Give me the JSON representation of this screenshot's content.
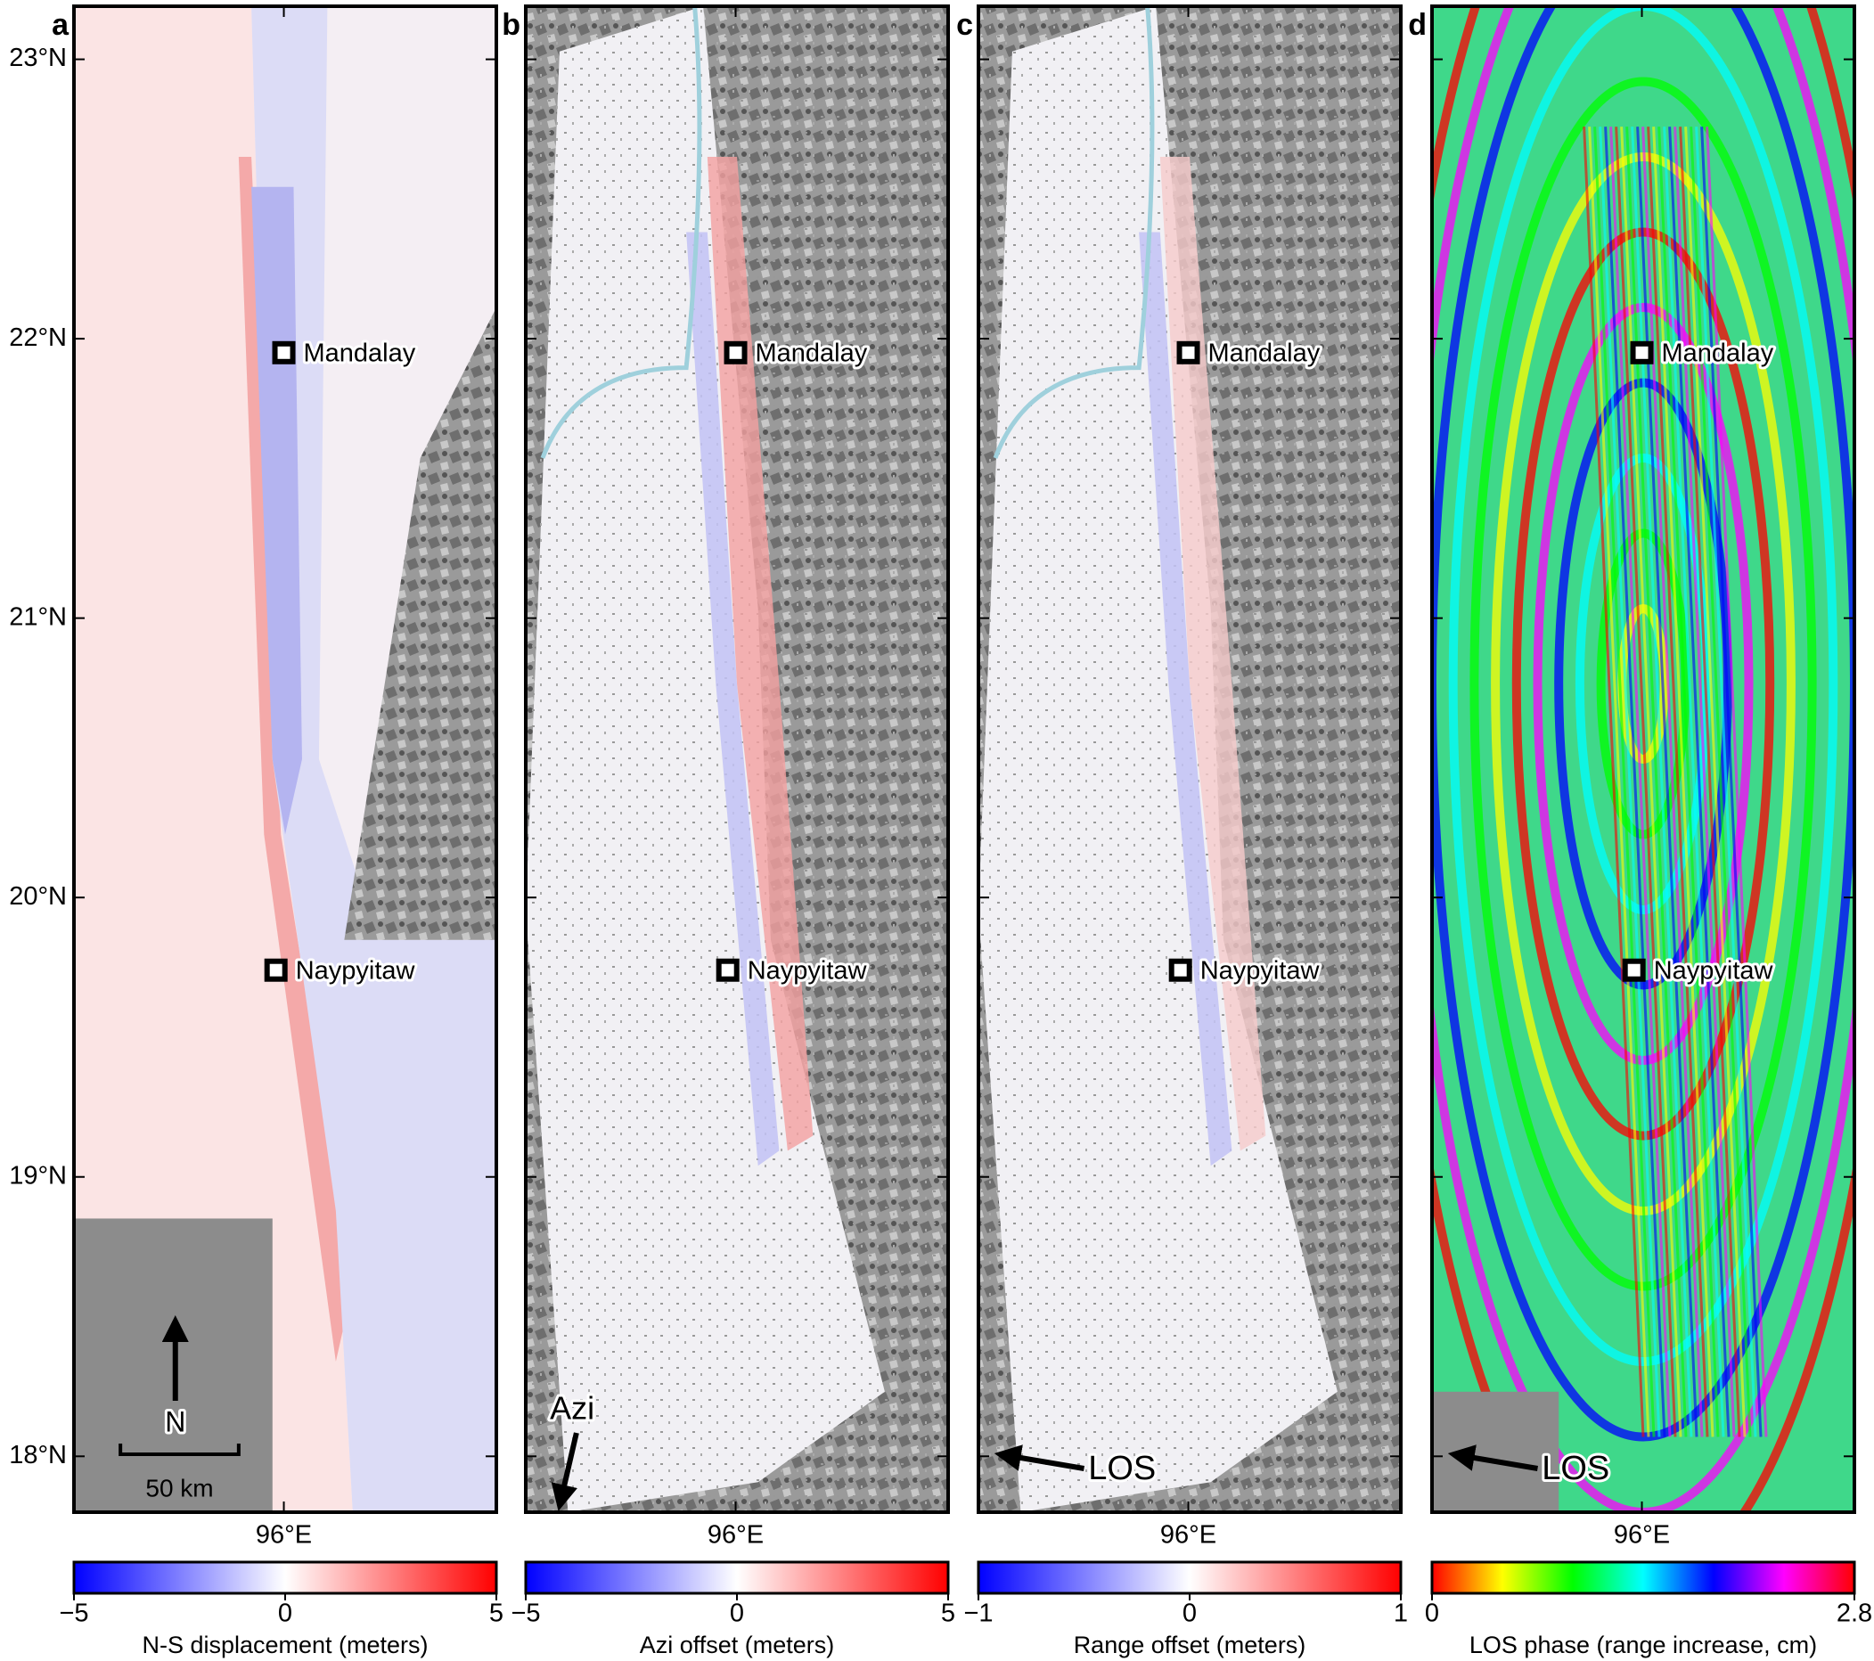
{
  "lat_ticks": [
    {
      "value": 23,
      "label": "23°N"
    },
    {
      "value": 22,
      "label": "22°N"
    },
    {
      "value": 21,
      "label": "21°N"
    },
    {
      "value": 20,
      "label": "20°N"
    },
    {
      "value": 19,
      "label": "19°N"
    },
    {
      "value": 18,
      "label": "18°N"
    }
  ],
  "lon_ticks": [
    {
      "value": 96,
      "label": "96°E"
    }
  ],
  "lat_range": [
    17.8,
    23.19
  ],
  "lon_range": [
    95.2,
    96.81
  ],
  "cities": [
    {
      "name": "Mandalay",
      "lon": 96.0,
      "lat": 21.95
    },
    {
      "name": "Naypyitaw",
      "lon": 95.97,
      "lat": 19.74
    }
  ],
  "panels": [
    {
      "letter": "a",
      "north_arrow": "N",
      "scale_bar": "50 km",
      "colorbar": {
        "label": "N-S displacement (meters)",
        "range": [
          -5,
          5
        ],
        "ticks": [
          {
            "value": -5,
            "label": "−5"
          },
          0,
          5
        ],
        "colors": [
          "#0000ff",
          "#ffffff",
          "#ff0000"
        ]
      }
    },
    {
      "letter": "b",
      "flight_direction": "Azi",
      "colorbar": {
        "label": "Azi offset (meters)",
        "range": [
          -5,
          5
        ],
        "ticks": [
          {
            "value": -5,
            "label": "−5"
          },
          0,
          5
        ],
        "colors": [
          "#0000ff",
          "#ffffff",
          "#ff0000"
        ]
      }
    },
    {
      "letter": "c",
      "look_direction": "LOS",
      "colorbar": {
        "label": "Range offset (meters)",
        "range": [
          -1,
          1
        ],
        "ticks": [
          {
            "value": -1,
            "label": "−1"
          },
          0,
          1
        ],
        "colors": [
          "#0000ff",
          "#ffffff",
          "#ff0000"
        ]
      }
    },
    {
      "letter": "d",
      "look_direction": "LOS",
      "colorbar": {
        "label": "LOS phase (range increase, cm)",
        "range": [
          0,
          2.8
        ],
        "ticks": [
          0,
          2.8
        ],
        "colors": [
          "#ff0000",
          "#ffff00",
          "#00ff00",
          "#00ffff",
          "#0000ff",
          "#ff00ff",
          "#ff0000"
        ]
      }
    }
  ]
}
